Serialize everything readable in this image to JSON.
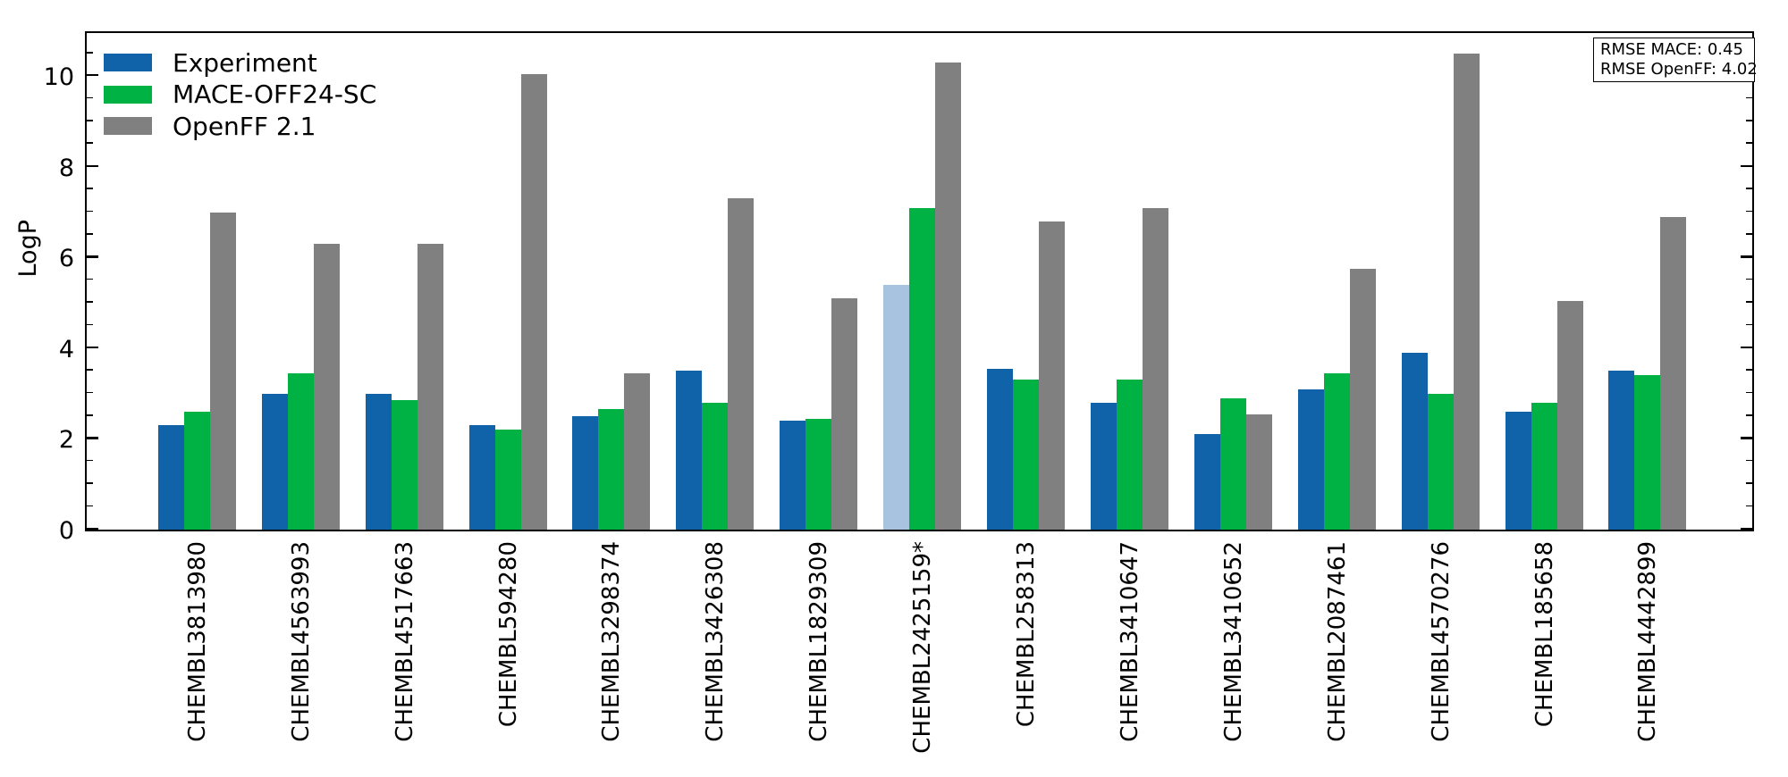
{
  "chart_data": {
    "type": "bar",
    "title": "",
    "xlabel": "",
    "ylabel": "LogP",
    "ylim": [
      0,
      11.0
    ],
    "yticks_major": [
      0,
      2,
      4,
      6,
      8,
      10
    ],
    "minor_tick_step": 0.5,
    "grid": "off",
    "legend_position": "upper-left-inside",
    "categories": [
      "CHEMBL3813980",
      "CHEMBL4563993",
      "CHEMBL4517663",
      "CHEMBL594280",
      "CHEMBL3298374",
      "CHEMBL3426308",
      "CHEMBL1829309",
      "CHEMBL2425159*",
      "CHEMBL258313",
      "CHEMBL3410647",
      "CHEMBL3410652",
      "CHEMBL2087461",
      "CHEMBL4570276",
      "CHEMBL185658",
      "CHEMBL4442899"
    ],
    "series": [
      {
        "name": "Experiment",
        "color": "#1063a9",
        "values": [
          2.3,
          3.0,
          3.0,
          2.3,
          2.5,
          3.5,
          2.4,
          5.4,
          3.55,
          2.8,
          2.1,
          3.1,
          3.9,
          2.6,
          3.5
        ]
      },
      {
        "name": "MACE-OFF24-SC",
        "color": "#00b244",
        "values": [
          2.6,
          3.45,
          2.85,
          2.2,
          2.65,
          2.8,
          2.45,
          7.1,
          3.3,
          3.3,
          2.9,
          3.45,
          3.0,
          2.8,
          3.4
        ]
      },
      {
        "name": "OpenFF 2.1",
        "color": "#808080",
        "values": [
          7.0,
          6.3,
          6.3,
          10.05,
          3.45,
          7.3,
          5.1,
          10.3,
          6.8,
          7.1,
          2.55,
          5.75,
          10.5,
          5.05,
          6.9
        ]
      }
    ],
    "highlight": {
      "category": "CHEMBL2425159*",
      "series": "Experiment",
      "color": "#a8c3e0"
    },
    "annotation_box": {
      "lines": [
        "RMSE MACE: 0.45",
        "RMSE OpenFF: 4.02"
      ]
    }
  }
}
